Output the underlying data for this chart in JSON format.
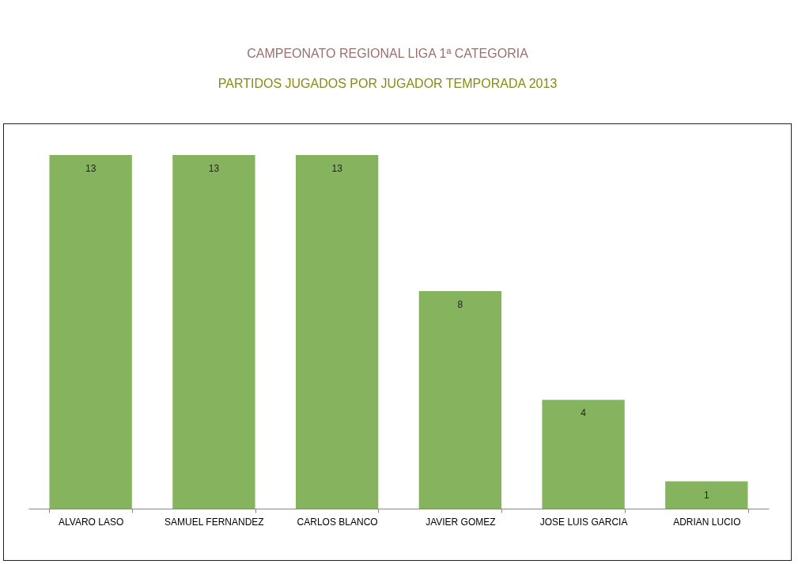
{
  "chart_data": {
    "type": "bar",
    "title": "CAMPEONATO REGIONAL LIGA 1ª CATEGORIA",
    "subtitle": "PARTIDOS JUGADOS POR JUGADOR TEMPORADA 2013",
    "categories": [
      "ALVARO LASO",
      "SAMUEL FERNANDEZ",
      "CARLOS BLANCO",
      "JAVIER GOMEZ",
      "JOSE LUIS GARCIA",
      "ADRIAN LUCIO"
    ],
    "values": [
      13,
      13,
      13,
      8,
      4,
      1
    ],
    "color": "#86b35e",
    "data_labels": true
  }
}
